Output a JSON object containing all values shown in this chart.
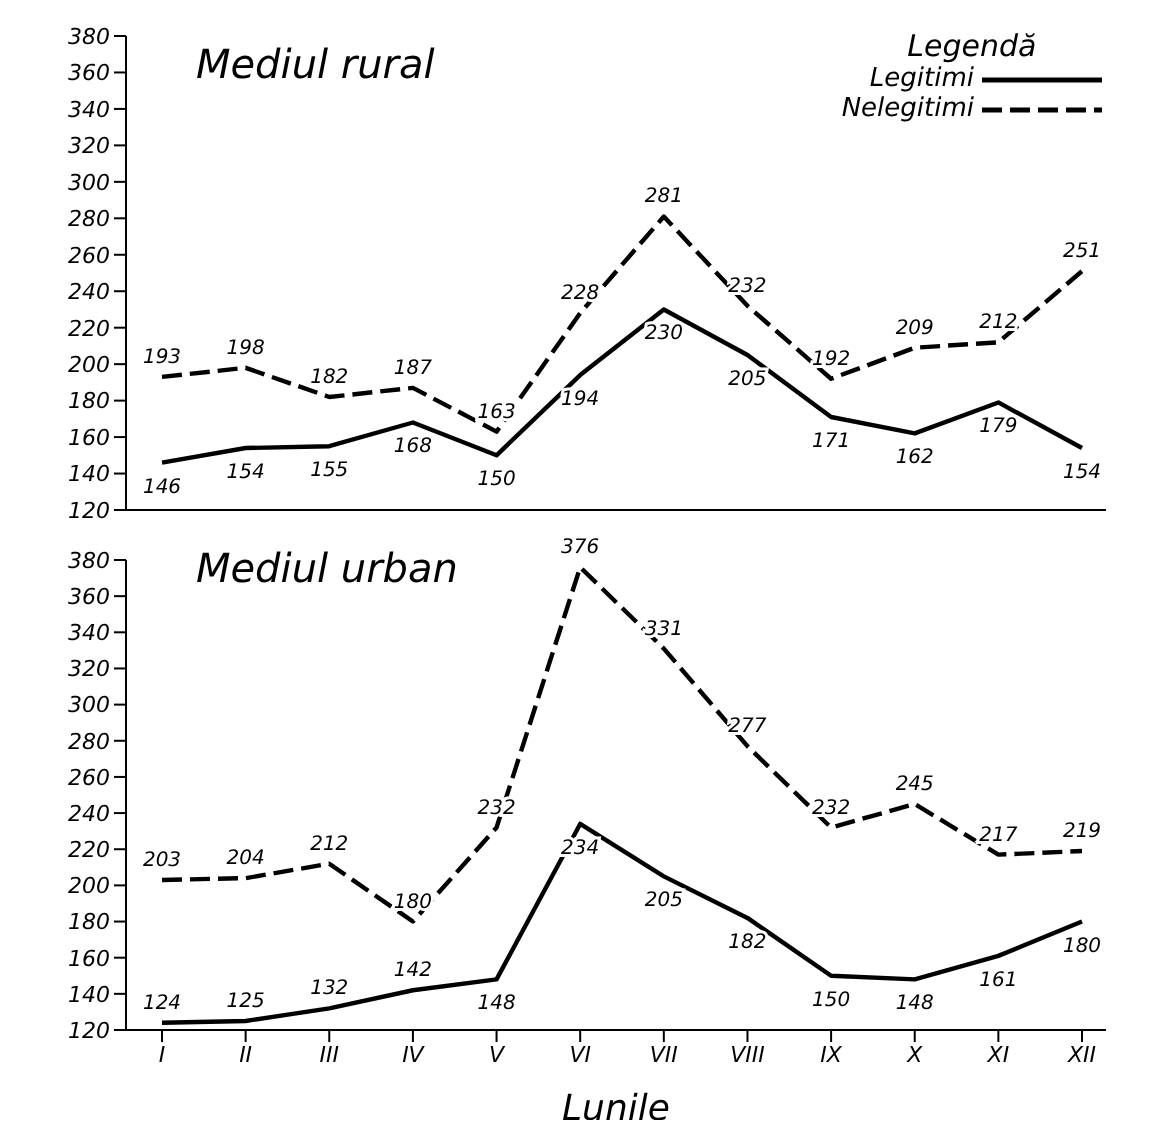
{
  "chart_data": [
    {
      "type": "line",
      "title": "Mediul rural",
      "categories": [
        null,
        null,
        null,
        null,
        null,
        null,
        null,
        null,
        null,
        null,
        null,
        null
      ],
      "series": [
        {
          "name": "Legitimi",
          "color": "#000000",
          "line_style": "solid",
          "values": [
            146,
            154,
            155,
            168,
            150,
            194,
            230,
            205,
            171,
            162,
            179,
            154
          ]
        },
        {
          "name": "Nelegitimi",
          "color": "#000000",
          "line_style": "dashed",
          "values": [
            193,
            198,
            182,
            187,
            163,
            228,
            281,
            232,
            192,
            209,
            212,
            251
          ]
        }
      ],
      "ylim": [
        120,
        380
      ],
      "yticks": [
        120,
        140,
        160,
        180,
        200,
        220,
        240,
        260,
        280,
        300,
        320,
        340,
        360,
        380
      ],
      "legend": "top right",
      "legend_title": "Legendă",
      "tick_labels": "y",
      "data_labels": true,
      "marker": "none",
      "grid": false
    },
    {
      "type": "line",
      "title": "Mediul urban",
      "xlabel": "Lunile",
      "categories": [
        "I",
        "II",
        "III",
        "IV",
        "V",
        "VI",
        "VII",
        "VIII",
        "IX",
        "X",
        "XI",
        "XII"
      ],
      "series": [
        {
          "color": "#000000",
          "line_style": "solid",
          "values": [
            124,
            125,
            132,
            142,
            148,
            234,
            205,
            182,
            150,
            148,
            161,
            180
          ]
        },
        {
          "color": "#000000",
          "line_style": "dashed",
          "values": [
            203,
            204,
            212,
            180,
            232,
            376,
            331,
            277,
            232,
            245,
            217,
            219
          ]
        }
      ],
      "ylim": [
        120,
        380
      ],
      "yticks": [
        120,
        140,
        160,
        180,
        200,
        220,
        240,
        260,
        280,
        300,
        320,
        340,
        360,
        380
      ],
      "data_labels": true,
      "marker": "none",
      "grid": false
    }
  ]
}
